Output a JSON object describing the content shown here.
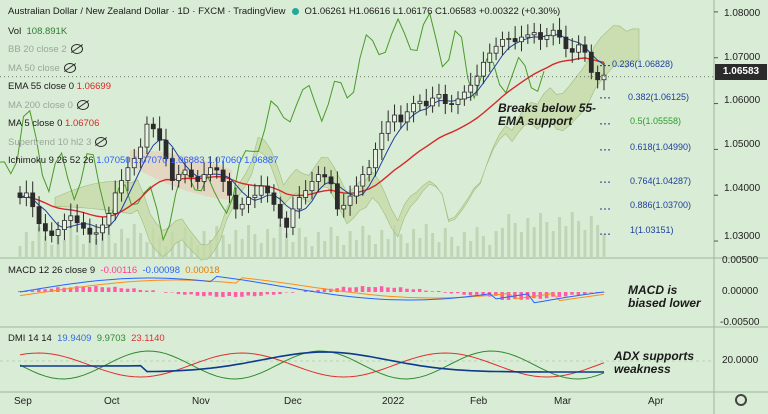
{
  "header": {
    "title": "Australian Dollar / New Zealand Dollar · 1D · FXCM · TradingView",
    "ohlc": "O1.06261 H1.06616 L1.06176 C1.06583 +0.00322 (+0.30%)",
    "vol_label": "Vol",
    "vol_value": "108.891K"
  },
  "indicators": [
    {
      "label": "BB 20 close 2",
      "value": "",
      "hidden": true
    },
    {
      "label": "MA 50 close",
      "value": "",
      "hidden": true
    },
    {
      "label": "EMA 55 close 0",
      "value": "1.06699",
      "hidden": false
    },
    {
      "label": "MA 200 close 0",
      "value": "",
      "hidden": true
    },
    {
      "label": "MA 5 close 0",
      "value": "1.06706",
      "hidden": false
    },
    {
      "label": "Supertrend 10 hl2 3",
      "value": "",
      "hidden": true
    },
    {
      "label": "Ichimoku 9 26 52 26",
      "value": "1.07050  1.07070  1.06883  1.07060  1.06887",
      "hidden": false
    }
  ],
  "price_axis": {
    "ticks": [
      "1.08000",
      "1.07000",
      "1.06000",
      "1.05000",
      "1.04000",
      "1.03000"
    ],
    "current_price": "1.06583"
  },
  "fib_levels": [
    {
      "label": "0.236(1.06828)",
      "value": 1.06828
    },
    {
      "label": "0.382(1.06125)",
      "value": 1.06125
    },
    {
      "label": "0.5(1.05558)",
      "value": 1.05558
    },
    {
      "label": "0.618(1.04990)",
      "value": 1.0499
    },
    {
      "label": "0.764(1.04287)",
      "value": 1.04287
    },
    {
      "label": "0.886(1.03700)",
      "value": 1.037
    },
    {
      "label": "1(1.03151)",
      "value": 1.03151
    }
  ],
  "time_axis": [
    "Sep",
    "Oct",
    "Nov",
    "Dec",
    "2022",
    "Feb",
    "Mar",
    "Apr"
  ],
  "macd": {
    "title": "MACD 12 26 close 9",
    "hist": "-0.00116",
    "macd": "-0.00098",
    "signal": "0.00018",
    "ticks": [
      "0.00500",
      "0.00000",
      "-0.00500"
    ]
  },
  "dmi": {
    "title": "DMI 14 14",
    "plus_di": "19.9409",
    "minus_di": "9.9703",
    "adx": "23.1140",
    "ticks": [
      "20.0000"
    ]
  },
  "annotations": {
    "ema": "Breaks below 55-EMA support",
    "macd": "MACD is biased lower",
    "adx": "ADX supports weakness"
  },
  "colors": {
    "bg": "#d9ecd5",
    "candle": "#2b2b2b",
    "ema55": "#d62828",
    "ma5": "#1e3f9c",
    "ichimoku_lagging": "#4a9a2a",
    "cloud": "#c6d9a6",
    "cloud_bear": "#e7cfb8",
    "volume": "#bfd6b6",
    "macd_hist": "#ff5ba8",
    "macd_line": "#2962ff",
    "signal_line": "#ff8c1a",
    "adx": "#0d3a8c",
    "plus_di": "#2f8a2f",
    "minus_di": "#e03030",
    "fib": "#1e3f9c"
  },
  "chart_data": {
    "type": "candlestick",
    "title": "Australian Dollar / New Zealand Dollar · 1D · FXCM",
    "ylim": [
      1.0263,
      1.0826
    ],
    "x_labels": [
      "Sep",
      "Oct",
      "Nov",
      "Dec",
      "2022",
      "Feb",
      "Mar",
      "Apr"
    ],
    "close_path": [
      1.0395,
      1.0405,
      1.0375,
      1.0338,
      1.0322,
      1.0312,
      1.0325,
      1.0345,
      1.0355,
      1.034,
      1.0328,
      1.0315,
      1.0318,
      1.0335,
      1.036,
      1.0405,
      1.0432,
      1.046,
      1.048,
      1.0505,
      1.0555,
      1.0545,
      1.052,
      1.048,
      1.0432,
      1.0445,
      1.0455,
      1.044,
      1.043,
      1.0445,
      1.046,
      1.0455,
      1.043,
      1.04,
      1.037,
      1.038,
      1.0395,
      1.04,
      1.042,
      1.0405,
      1.038,
      1.035,
      1.033,
      1.037,
      1.0395,
      1.041,
      1.043,
      1.0445,
      1.044,
      1.0425,
      1.037,
      1.0378,
      1.0398,
      1.042,
      1.0445,
      1.046,
      1.05,
      1.0535,
      1.056,
      1.0575,
      1.056,
      1.0582,
      1.06,
      1.0605,
      1.0595,
      1.0612,
      1.062,
      1.06,
      1.0598,
      1.061,
      1.0625,
      1.064,
      1.066,
      1.069,
      1.071,
      1.0725,
      1.074,
      1.0742,
      1.0735,
      1.0745,
      1.075,
      1.0755,
      1.074,
      1.0748,
      1.076,
      1.0745,
      1.072,
      1.0712,
      1.0728,
      1.0712,
      1.0668,
      1.0652,
      1.0662
    ],
    "last": {
      "o": 1.06261,
      "h": 1.06616,
      "l": 1.06176,
      "c": 1.06583
    }
  }
}
